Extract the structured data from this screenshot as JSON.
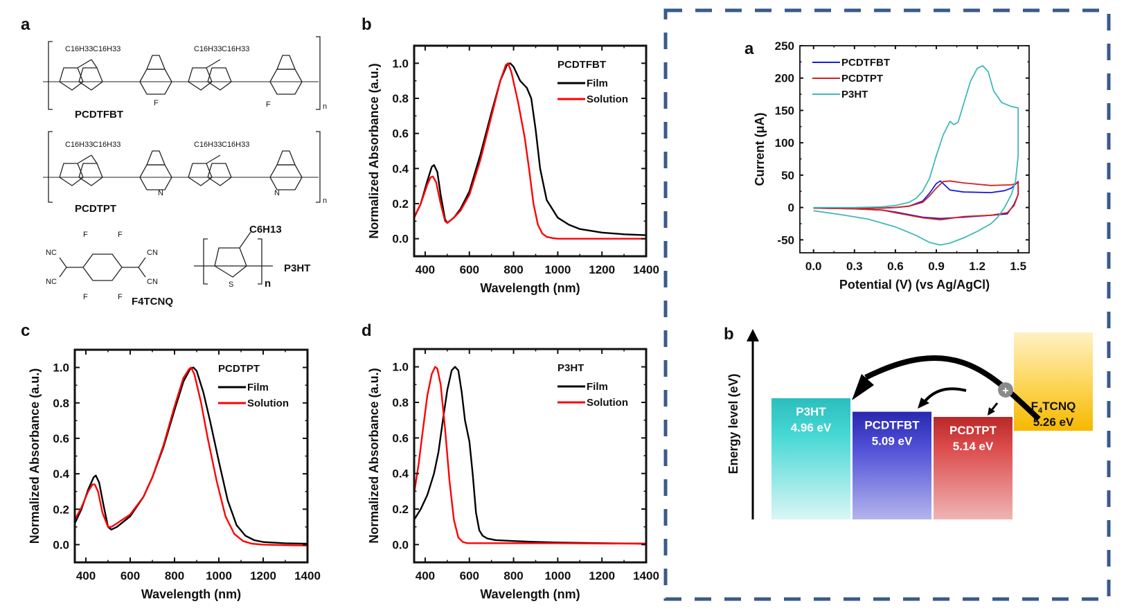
{
  "figure": {
    "panel_labels": {
      "a": "a",
      "b": "b",
      "c": "c",
      "d": "d",
      "cv": "a",
      "energy": "b"
    },
    "dashed_box_color": "#3a5a8a"
  },
  "structures": {
    "pcdtfbt": {
      "name": "PCDTFBT",
      "side_chain": "C16H33",
      "atoms": [
        "S",
        "N",
        "F"
      ],
      "repeat": "n"
    },
    "pcdtpt": {
      "name": "PCDTPT",
      "side_chain": "C16H33",
      "atoms": [
        "S",
        "N"
      ],
      "repeat": "n"
    },
    "f4tcnq": {
      "name": "F4TCNQ",
      "groups": [
        "NC",
        "CN",
        "F"
      ]
    },
    "p3ht": {
      "name": "P3HT",
      "side_chain": "C6H13",
      "atoms": [
        "S"
      ],
      "repeat": "n"
    }
  },
  "chart_data": [
    {
      "id": "b",
      "type": "line",
      "title": "",
      "legend_title": "PCDTFBT",
      "legend_position": "top-right",
      "xlabel": "Wavelength (nm)",
      "ylabel": "Normalized Absorbance (a.u.)",
      "xlim": [
        350,
        1400
      ],
      "ylim": [
        -0.1,
        1.1
      ],
      "xticks": [
        400,
        600,
        800,
        1000,
        1200,
        1400
      ],
      "yticks": [
        0.0,
        0.2,
        0.4,
        0.6,
        0.8,
        1.0
      ],
      "xticklabels": [
        "400",
        "600",
        "800",
        "1000",
        "1200",
        "1400"
      ],
      "yticklabels": [
        "0.0",
        "0.2",
        "0.4",
        "0.6",
        "0.8",
        "1.0"
      ],
      "series": [
        {
          "name": "Film",
          "color": "#000000",
          "x": [
            350,
            380,
            410,
            430,
            440,
            455,
            470,
            490,
            500,
            530,
            560,
            600,
            650,
            700,
            740,
            770,
            785,
            800,
            830,
            860,
            880,
            900,
            920,
            950,
            1000,
            1050,
            1100,
            1200,
            1300,
            1400
          ],
          "y": [
            0.12,
            0.2,
            0.33,
            0.41,
            0.42,
            0.38,
            0.25,
            0.11,
            0.09,
            0.12,
            0.17,
            0.27,
            0.48,
            0.72,
            0.9,
            0.99,
            1.0,
            0.98,
            0.9,
            0.86,
            0.8,
            0.62,
            0.4,
            0.22,
            0.12,
            0.08,
            0.055,
            0.035,
            0.025,
            0.02
          ]
        },
        {
          "name": "Solution",
          "color": "#ff0000",
          "x": [
            350,
            380,
            410,
            425,
            435,
            450,
            470,
            490,
            500,
            530,
            560,
            600,
            650,
            700,
            740,
            765,
            775,
            790,
            820,
            850,
            870,
            890,
            910,
            930,
            950,
            980,
            1000,
            1100,
            1200,
            1400
          ],
          "y": [
            0.12,
            0.2,
            0.31,
            0.35,
            0.355,
            0.32,
            0.2,
            0.1,
            0.09,
            0.12,
            0.16,
            0.25,
            0.45,
            0.7,
            0.9,
            0.99,
            1.0,
            0.95,
            0.78,
            0.58,
            0.4,
            0.2,
            0.08,
            0.03,
            0.01,
            0.003,
            0.0,
            0.0,
            0.0,
            0.0
          ]
        }
      ]
    },
    {
      "id": "c",
      "type": "line",
      "title": "",
      "legend_title": "PCDTPT",
      "legend_position": "top-right",
      "xlabel": "Wavelength (nm)",
      "ylabel": "Normalized Absorbance (a.u.)",
      "xlim": [
        350,
        1400
      ],
      "ylim": [
        -0.1,
        1.1
      ],
      "xticks": [
        400,
        600,
        800,
        1000,
        1200,
        1400
      ],
      "yticks": [
        0.0,
        0.2,
        0.4,
        0.6,
        0.8,
        1.0
      ],
      "xticklabels": [
        "400",
        "600",
        "800",
        "1000",
        "1200",
        "1400"
      ],
      "yticklabels": [
        "0.0",
        "0.2",
        "0.4",
        "0.6",
        "0.8",
        "1.0"
      ],
      "series": [
        {
          "name": "Film",
          "color": "#000000",
          "x": [
            350,
            380,
            410,
            435,
            445,
            460,
            480,
            500,
            515,
            540,
            600,
            660,
            700,
            750,
            800,
            840,
            870,
            885,
            900,
            930,
            960,
            1000,
            1040,
            1080,
            1120,
            1160,
            1200,
            1300,
            1400
          ],
          "y": [
            0.12,
            0.2,
            0.31,
            0.38,
            0.39,
            0.35,
            0.22,
            0.1,
            0.085,
            0.1,
            0.16,
            0.27,
            0.38,
            0.55,
            0.76,
            0.92,
            0.99,
            1.0,
            0.98,
            0.86,
            0.7,
            0.47,
            0.25,
            0.11,
            0.05,
            0.025,
            0.015,
            0.008,
            0.005
          ]
        },
        {
          "name": "Solution",
          "color": "#ff0000",
          "x": [
            350,
            380,
            410,
            430,
            440,
            455,
            475,
            500,
            515,
            540,
            600,
            660,
            700,
            750,
            800,
            840,
            865,
            875,
            890,
            920,
            950,
            990,
            1030,
            1070,
            1110,
            1150,
            1200,
            1300,
            1400
          ],
          "y": [
            0.14,
            0.21,
            0.3,
            0.34,
            0.34,
            0.3,
            0.18,
            0.1,
            0.1,
            0.12,
            0.17,
            0.27,
            0.38,
            0.56,
            0.78,
            0.94,
            0.99,
            1.0,
            0.96,
            0.8,
            0.6,
            0.36,
            0.16,
            0.06,
            0.02,
            0.005,
            0.0,
            -0.003,
            -0.005
          ]
        }
      ]
    },
    {
      "id": "d",
      "type": "line",
      "title": "",
      "legend_title": "P3HT",
      "legend_position": "top-right",
      "xlabel": "Wavelength (nm)",
      "ylabel": "Normalized Absorbance (a.u.)",
      "xlim": [
        350,
        1400
      ],
      "ylim": [
        -0.1,
        1.1
      ],
      "xticks": [
        400,
        600,
        800,
        1000,
        1200,
        1400
      ],
      "yticks": [
        0.0,
        0.2,
        0.4,
        0.6,
        0.8,
        1.0
      ],
      "xticklabels": [
        "400",
        "600",
        "800",
        "1000",
        "1200",
        "1400"
      ],
      "yticklabels": [
        "0.0",
        "0.2",
        "0.4",
        "0.6",
        "0.8",
        "1.0"
      ],
      "series": [
        {
          "name": "Film",
          "color": "#000000",
          "x": [
            350,
            380,
            410,
            440,
            460,
            480,
            500,
            520,
            535,
            550,
            565,
            580,
            600,
            615,
            630,
            645,
            660,
            680,
            720,
            800,
            900,
            1000,
            1200,
            1400
          ],
          "y": [
            0.14,
            0.2,
            0.28,
            0.4,
            0.52,
            0.7,
            0.87,
            0.98,
            1.0,
            0.98,
            0.86,
            0.7,
            0.58,
            0.4,
            0.18,
            0.08,
            0.05,
            0.035,
            0.025,
            0.02,
            0.015,
            0.012,
            0.008,
            0.005
          ]
        },
        {
          "name": "Solution",
          "color": "#ff0000",
          "x": [
            350,
            370,
            390,
            410,
            430,
            445,
            455,
            470,
            490,
            510,
            530,
            550,
            570,
            590,
            620,
            800,
            1000,
            1200,
            1400
          ],
          "y": [
            0.29,
            0.45,
            0.65,
            0.84,
            0.96,
            1.0,
            0.99,
            0.9,
            0.65,
            0.36,
            0.14,
            0.04,
            0.015,
            0.008,
            0.008,
            0.008,
            0.008,
            0.006,
            0.005
          ]
        }
      ]
    },
    {
      "id": "cv",
      "type": "line",
      "title": "",
      "legend_position": "top-left",
      "xlabel": "Potential (V) (vs Ag/AgCl)",
      "ylabel": "Current (μA)",
      "xlim": [
        -0.1,
        1.58
      ],
      "ylim": [
        -70,
        250
      ],
      "xticks": [
        0.0,
        0.3,
        0.6,
        0.9,
        1.2,
        1.5
      ],
      "yticks": [
        -50,
        0,
        50,
        100,
        150,
        200,
        250
      ],
      "xticklabels": [
        "0.0",
        "0.3",
        "0.6",
        "0.9",
        "1.2",
        "1.5"
      ],
      "yticklabels": [
        "-50",
        "0",
        "50",
        "100",
        "150",
        "200",
        "250"
      ],
      "series": [
        {
          "name": "PCDTFBT",
          "color": "#1a1adb",
          "x": [
            0.0,
            0.3,
            0.5,
            0.6,
            0.7,
            0.8,
            0.85,
            0.9,
            0.93,
            0.96,
            1.0,
            1.1,
            1.3,
            1.4,
            1.45,
            1.5,
            1.5,
            1.47,
            1.42,
            1.3,
            1.1,
            0.93,
            0.8,
            0.6,
            0.5,
            0.3,
            0.0
          ],
          "y": [
            -1,
            -1,
            -1,
            0,
            2,
            10,
            22,
            37,
            41,
            35,
            27,
            24,
            23,
            26,
            30,
            40,
            20,
            5,
            -10,
            -12,
            -15,
            -17,
            -15,
            -7,
            -4,
            -2,
            -1
          ]
        },
        {
          "name": "PCDTPT",
          "color": "#d42020",
          "x": [
            0.0,
            0.3,
            0.5,
            0.6,
            0.7,
            0.8,
            0.85,
            0.9,
            0.95,
            1.0,
            1.1,
            1.3,
            1.45,
            1.5,
            1.5,
            1.47,
            1.42,
            1.3,
            1.1,
            0.93,
            0.8,
            0.6,
            0.5,
            0.3,
            0.0
          ],
          "y": [
            -1,
            -1,
            -1,
            0,
            2,
            8,
            18,
            30,
            40,
            41,
            38,
            34,
            35,
            38,
            20,
            3,
            -8,
            -12,
            -14,
            -19,
            -16,
            -8,
            -4,
            -2,
            -1
          ]
        },
        {
          "name": "P3HT",
          "color": "#40b8b8",
          "x": [
            0.0,
            0.3,
            0.5,
            0.6,
            0.7,
            0.75,
            0.8,
            0.85,
            0.9,
            0.95,
            1.0,
            1.03,
            1.06,
            1.1,
            1.15,
            1.2,
            1.24,
            1.28,
            1.32,
            1.38,
            1.45,
            1.5,
            1.5,
            1.48,
            1.45,
            1.4,
            1.35,
            1.3,
            1.2,
            1.1,
            1.0,
            0.93,
            0.85,
            0.75,
            0.6,
            0.4,
            0.2,
            0.0
          ],
          "y": [
            0,
            0,
            1,
            3,
            8,
            14,
            25,
            45,
            80,
            112,
            133,
            128,
            132,
            160,
            195,
            215,
            219,
            210,
            180,
            162,
            156,
            154,
            80,
            40,
            20,
            0,
            -15,
            -25,
            -37,
            -47,
            -55,
            -58,
            -54,
            -43,
            -30,
            -18,
            -11,
            -5
          ]
        }
      ]
    },
    {
      "id": "energy",
      "type": "bar",
      "title": "",
      "ylabel": "Energy level (eV)",
      "categories": [
        "P3HT",
        "PCDTFBT",
        "PCDTPT",
        "F4TCNQ"
      ],
      "value_labels": [
        "4.96 eV",
        "5.09 eV",
        "5.14 eV",
        "5.26 eV"
      ],
      "values": [
        4.96,
        5.09,
        5.14,
        5.26
      ],
      "colors": [
        "#3ccfcf",
        "#3a3ac8",
        "#cc3a3a",
        "#f5c21c"
      ],
      "annotations": [
        "hole transfer from F4TCNQ to each polymer",
        "+"
      ]
    }
  ]
}
